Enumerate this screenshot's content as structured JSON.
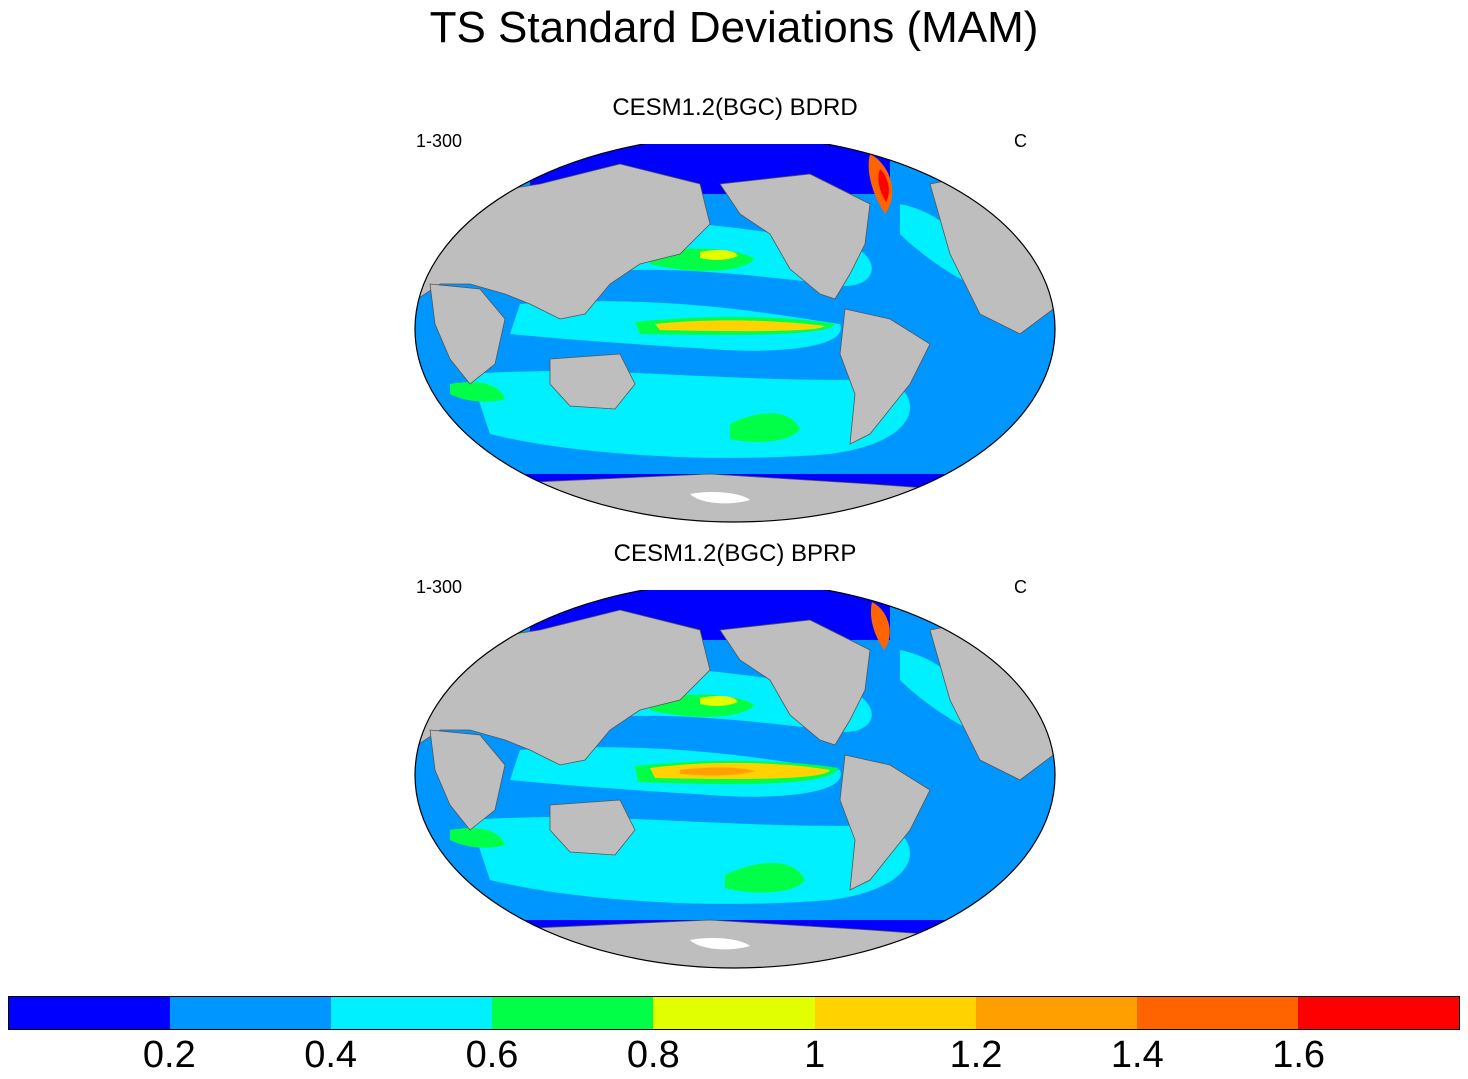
{
  "title": "TS Standard Deviations (MAM)",
  "panels": [
    {
      "title": "CESM1.2(BGC) BDRD",
      "left_label": "1-300",
      "right_label": "C"
    },
    {
      "title": "CESM1.2(BGC) BPRP",
      "left_label": "1-300",
      "right_label": "C"
    }
  ],
  "colorbar": {
    "colors": [
      "#0000ff",
      "#0096ff",
      "#00f0ff",
      "#00ff46",
      "#e1ff00",
      "#ffd200",
      "#ffa000",
      "#ff6400",
      "#ff0000"
    ],
    "labels": [
      "0.2",
      "0.4",
      "0.6",
      "0.8",
      "1",
      "1.2",
      "1.4",
      "1.6"
    ]
  },
  "land_color": "#bebebe"
}
